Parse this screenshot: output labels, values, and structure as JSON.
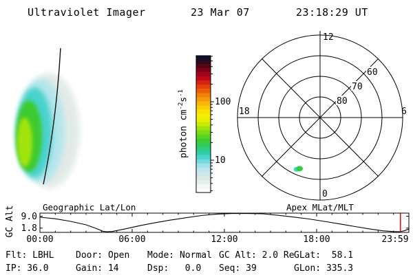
{
  "header": {
    "title": "Ultraviolet Imager",
    "date": "23 Mar 07",
    "time": "23:18:29 UT"
  },
  "uv_image": {
    "description": "crescent-shaped auroral UV emission blob with Earth limb line",
    "colors": {
      "halo": "#dce6e3",
      "light_cyan": "#b2e6ec",
      "cyan": "#48d2cc",
      "green": "#3cca2e",
      "core": "#a4e40a",
      "limb_line": "#111111"
    }
  },
  "colorbar": {
    "label": "photon cm-2 s-1",
    "label_base1": "photon cm",
    "label_sup1": "-2",
    "label_base2": "s",
    "label_sup2": "-1",
    "ticks": [
      {
        "label": "100",
        "value": 100
      },
      {
        "label": "10",
        "value": 10
      }
    ],
    "scale": "log",
    "colors_bottom_to_top": [
      "#ffffff",
      "#f2f6f4",
      "#e6eeec",
      "#dae8e6",
      "#cee6e8",
      "#bce6ee",
      "#9ee2ec",
      "#74dadc",
      "#4cd4cc",
      "#32cea8",
      "#2ecc80",
      "#32cc54",
      "#3ccc30",
      "#58d422",
      "#7cdc14",
      "#a2e40a",
      "#c8ec04",
      "#e6f002",
      "#f6ee02",
      "#f8e204",
      "#f8ce06",
      "#f8b607",
      "#f49c08",
      "#f08008",
      "#ec6008",
      "#e44008",
      "#d62210",
      "#c20a16",
      "#a2041c",
      "#7c0318",
      "#540414",
      "#2c0a1e",
      "#10102c"
    ]
  },
  "polar": {
    "mlt_top": "12",
    "mlt_left": "18",
    "mlt_right": "6",
    "mlt_bottom": "0",
    "lat_80": "80",
    "lat_70": "70",
    "lat_60": "60",
    "spot_colors": {
      "green": "#38cc44",
      "cyan": "#40d8d0"
    }
  },
  "timeline": {
    "ylabel": "GC Alt",
    "ytick_top": "9.0",
    "ytick_bottom": "1.8",
    "xtick_0": "00:00",
    "xtick_6": "06:00",
    "xtick_12": "12:00",
    "xtick_18": "18:00",
    "xtick_24": "23:59",
    "title_left": "Geographic Lat/Lon",
    "title_right": "Apex MLat/MLT",
    "marker_color": "#dd1111"
  },
  "status": {
    "items": [
      [
        "Flt: LBHL",
        "IP: 36.0"
      ],
      [
        "Door: Open",
        "Gain: 14"
      ],
      [
        "Mode: Normal",
        "Dsp:   0.0"
      ],
      [
        "GC Alt: 2.0 Re",
        "Seq: 39"
      ],
      [
        "GLat:  58.1",
        "GLon: 335.3"
      ]
    ]
  },
  "chart_data": [
    {
      "type": "heatmap",
      "title": "UV detector image",
      "value_label": "photon cm-2 s-1",
      "scale": "log",
      "colorbar_ticks": [
        10,
        100
      ],
      "approx_value_range": [
        2,
        600
      ],
      "content": "crescent auroral emission on left limb of Earth; peak intensity ~30-80 photon cm-2 s-1 in yellow-green core, fading through green, cyan and pale grey; thin black limb/terminator line crosses the blob"
    },
    {
      "type": "scatter",
      "projection": "polar",
      "title": "Apex MLat/MLT",
      "rings_mlat": [
        80,
        70,
        60,
        50
      ],
      "mlt_axis_labels": {
        "top": 12,
        "left": 18,
        "right": 6,
        "bottom": 0
      },
      "points": [
        {
          "mlat": 63,
          "mlt": 22.5,
          "label": "auroral emission spot"
        }
      ]
    },
    {
      "type": "line",
      "title": "GC Alt vs UT",
      "ylabel": "GC Alt",
      "yticks": [
        9.0,
        1.8
      ],
      "xticks": [
        "00:00",
        "06:00",
        "12:00",
        "18:00",
        "23:59"
      ],
      "x_range_hours": [
        0,
        24
      ],
      "x_hours": [
        0,
        1,
        2,
        3,
        3.7,
        4.1,
        4.35,
        4.7,
        5.5,
        6.5,
        7.5,
        8.5,
        9.5,
        10.5,
        11.5,
        12.5,
        13.5,
        14.5,
        15.5,
        16.5,
        17.5,
        18.5,
        19.5,
        20.5,
        21.5,
        22.3,
        23.0,
        23.4,
        23.7,
        24
      ],
      "alt_re": [
        8.5,
        7.8,
        6.6,
        5.0,
        3.2,
        2.0,
        1.8,
        1.9,
        3.0,
        4.6,
        6.0,
        7.2,
        8.3,
        9.3,
        10.0,
        10.3,
        10.35,
        10.1,
        9.4,
        8.6,
        7.7,
        6.6,
        5.4,
        4.2,
        3.0,
        2.2,
        1.85,
        1.8,
        2.2,
        3.0
      ],
      "marker_hour": 23.45
    }
  ]
}
